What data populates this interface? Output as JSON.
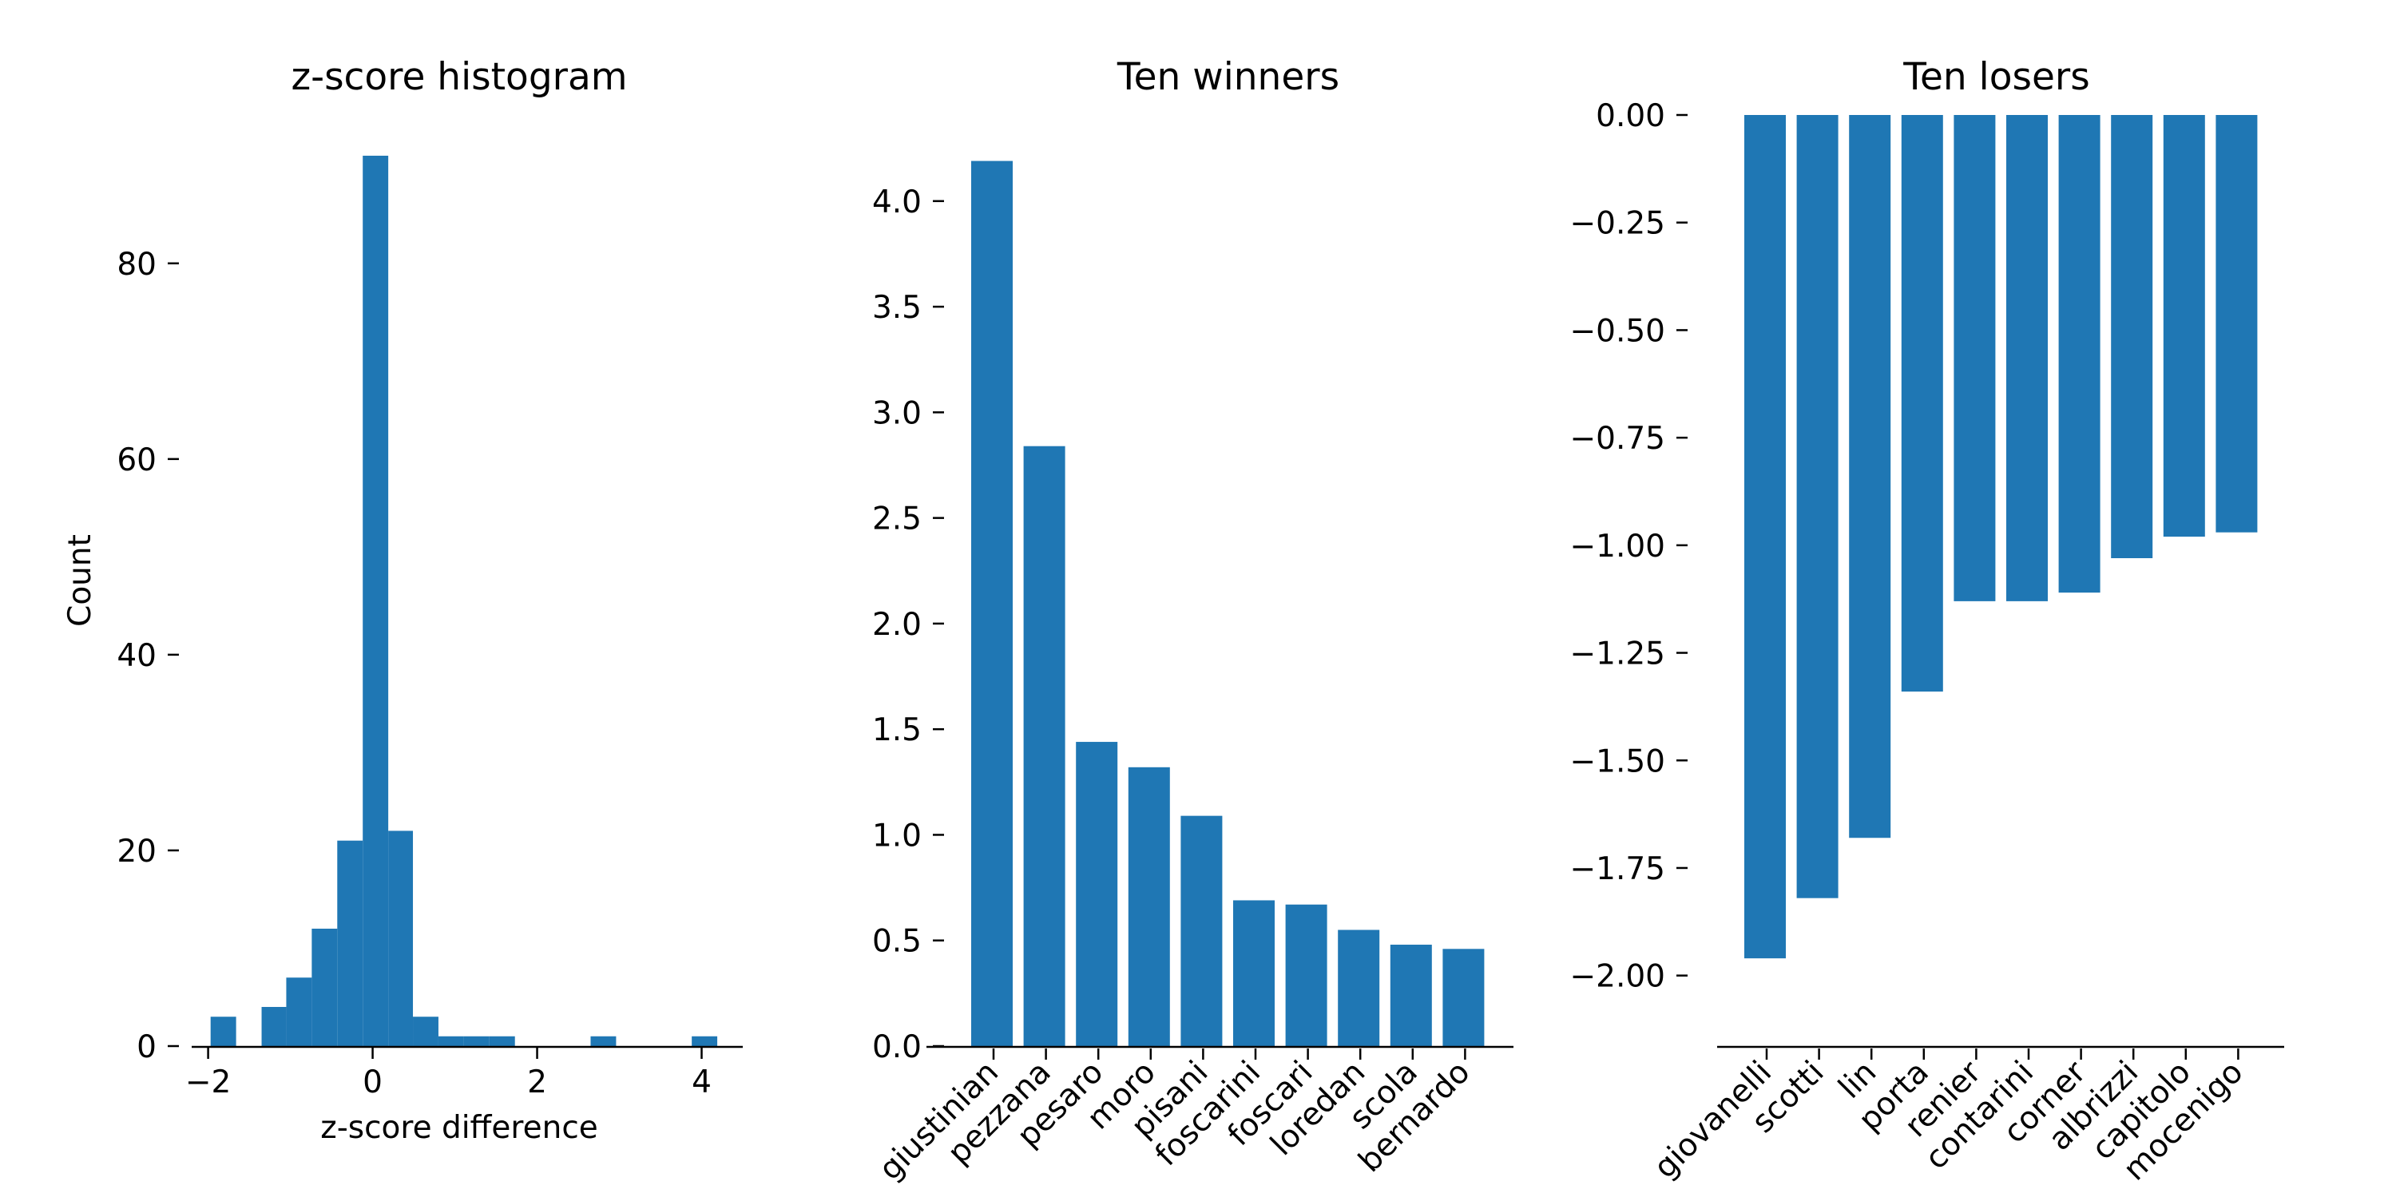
{
  "chart_data": [
    {
      "type": "bar",
      "subtype": "histogram",
      "title": "z-score histogram",
      "xlabel": "z-score difference",
      "ylabel": "Count",
      "xlim": [
        -2.2,
        4.5
      ],
      "ylim": [
        0,
        95
      ],
      "x_ticks": [
        -2,
        0,
        2,
        4
      ],
      "x_tick_labels": [
        "−2",
        "0",
        "2",
        "4"
      ],
      "y_ticks": [
        0,
        20,
        40,
        60,
        80
      ],
      "y_tick_labels": [
        "0",
        "20",
        "40",
        "60",
        "80"
      ],
      "bins": [
        {
          "x0": -1.97,
          "x1": -1.66,
          "count": 3
        },
        {
          "x0": -1.66,
          "x1": -1.35,
          "count": 0
        },
        {
          "x0": -1.35,
          "x1": -1.05,
          "count": 4
        },
        {
          "x0": -1.05,
          "x1": -0.74,
          "count": 7
        },
        {
          "x0": -0.74,
          "x1": -0.43,
          "count": 12
        },
        {
          "x0": -0.43,
          "x1": -0.12,
          "count": 21
        },
        {
          "x0": -0.12,
          "x1": 0.19,
          "count": 91
        },
        {
          "x0": 0.19,
          "x1": 0.49,
          "count": 22
        },
        {
          "x0": 0.49,
          "x1": 0.8,
          "count": 3
        },
        {
          "x0": 0.8,
          "x1": 1.11,
          "count": 1
        },
        {
          "x0": 1.11,
          "x1": 1.42,
          "count": 1
        },
        {
          "x0": 1.42,
          "x1": 1.73,
          "count": 1
        },
        {
          "x0": 1.73,
          "x1": 2.03,
          "count": 0
        },
        {
          "x0": 2.03,
          "x1": 2.34,
          "count": 0
        },
        {
          "x0": 2.34,
          "x1": 2.65,
          "count": 0
        },
        {
          "x0": 2.65,
          "x1": 2.96,
          "count": 1
        },
        {
          "x0": 2.96,
          "x1": 3.27,
          "count": 0
        },
        {
          "x0": 3.27,
          "x1": 3.57,
          "count": 0
        },
        {
          "x0": 3.57,
          "x1": 3.88,
          "count": 0
        },
        {
          "x0": 3.88,
          "x1": 4.19,
          "count": 1
        }
      ],
      "color": "#1f77b4"
    },
    {
      "type": "bar",
      "title": "Ten winners",
      "xlabel": "",
      "ylabel": "",
      "categories": [
        "giustinian",
        "pezzana",
        "pesaro",
        "moro",
        "pisani",
        "foscarini",
        "foscari",
        "loredan",
        "scola",
        "bernardo"
      ],
      "values": [
        4.19,
        2.84,
        1.44,
        1.32,
        1.09,
        0.69,
        0.67,
        0.55,
        0.48,
        0.46
      ],
      "ylim": [
        0,
        4.4
      ],
      "y_ticks": [
        0,
        0.5,
        1,
        1.5,
        2,
        2.5,
        3,
        3.5,
        4
      ],
      "y_tick_labels": [
        "0.0",
        "0.5",
        "1.0",
        "1.5",
        "2.0",
        "2.5",
        "3.0",
        "3.5",
        "4.0"
      ],
      "color": "#1f77b4"
    },
    {
      "type": "bar",
      "title": "Ten losers",
      "xlabel": "",
      "ylabel": "",
      "categories": [
        "giovanelli",
        "scotti",
        "lin",
        "porta",
        "renier",
        "contarini",
        "corner",
        "albrizzi",
        "capitolo",
        "mocenigo"
      ],
      "values": [
        -1.96,
        -1.82,
        -1.68,
        -1.34,
        -1.13,
        -1.13,
        -1.11,
        -1.03,
        -0.98,
        -0.97
      ],
      "ylim": [
        -2.06,
        0
      ],
      "y_ticks": [
        0,
        -0.25,
        -0.5,
        -0.75,
        -1,
        -1.25,
        -1.5,
        -1.75,
        -2
      ],
      "y_tick_labels": [
        "0.00",
        "−0.25",
        "−0.50",
        "−0.75",
        "−1.00",
        "−1.25",
        "−1.50",
        "−1.75",
        "−2.00"
      ],
      "color": "#1f77b4"
    }
  ]
}
